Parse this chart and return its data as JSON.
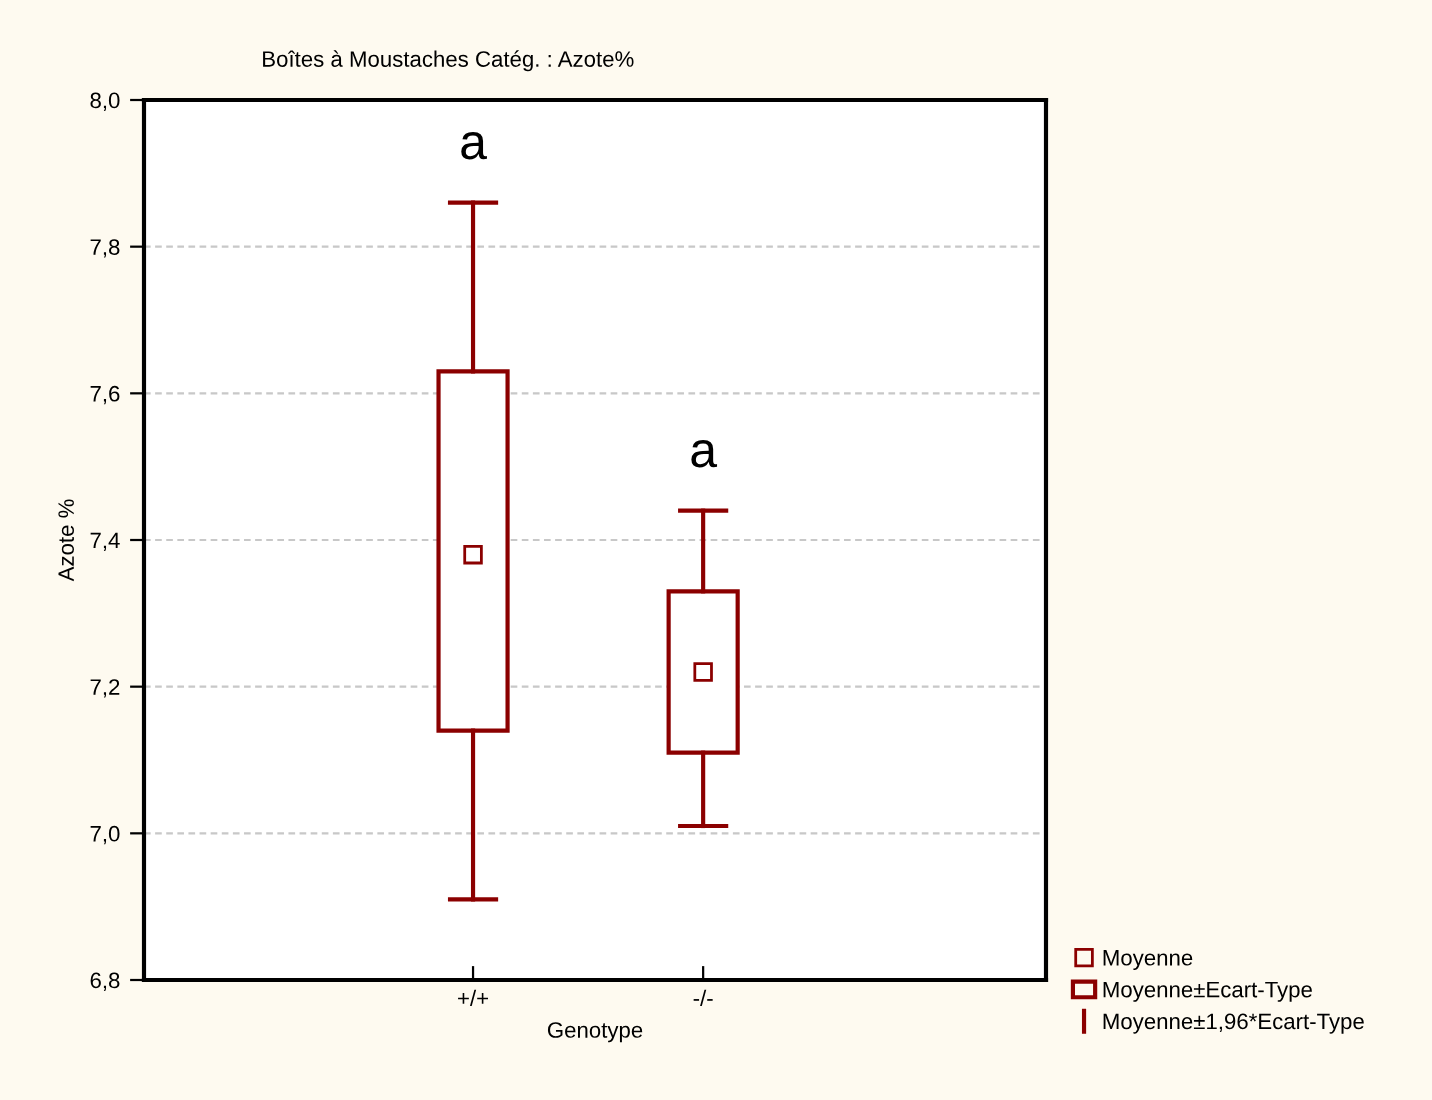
{
  "chart_data": {
    "type": "box",
    "title": "Boîtes à Moustaches Catég. : Azote%",
    "xlabel": "Genotype",
    "ylabel": "Azote %",
    "categories": [
      "+/+",
      "-/-"
    ],
    "series": [
      {
        "name": "Moyenne±Ecart-Type",
        "color": "#8b0000",
        "boxes": [
          {
            "low": 6.91,
            "q1": 7.14,
            "median": 7.38,
            "q3": 7.63,
            "high": 7.86
          },
          {
            "low": 7.01,
            "q1": 7.11,
            "median": 7.22,
            "q3": 7.33,
            "high": 7.44
          }
        ]
      }
    ],
    "annotations": [
      "a",
      "a",
      "Moyenne",
      "Moyenne±1,96*Ecart-Type"
    ],
    "ylim": [
      6.8,
      8.0
    ],
    "yticks": [
      {
        "value": 6.8,
        "label": "6,8"
      },
      {
        "value": 7.0,
        "label": "7,0"
      },
      {
        "value": 7.2,
        "label": "7,2"
      },
      {
        "value": 7.4,
        "label": "7,4"
      },
      {
        "value": 7.6,
        "label": "7,6"
      },
      {
        "value": 7.8,
        "label": "7,8"
      },
      {
        "value": 8.0,
        "label": "8,0"
      }
    ],
    "grid": "y",
    "legend": "bottom right"
  }
}
